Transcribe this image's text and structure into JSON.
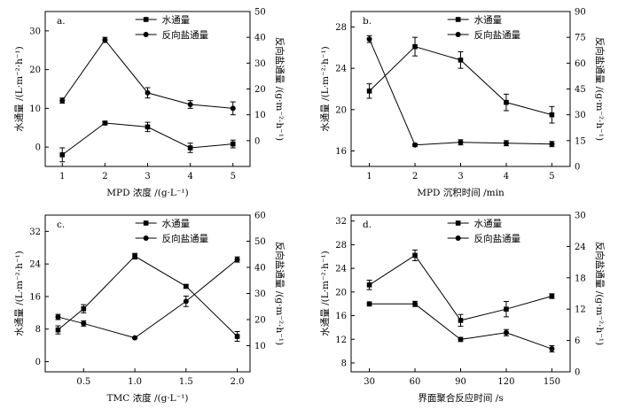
{
  "chart_data": [
    {
      "type": "line",
      "panel_label": "a.",
      "xlabel": "MPD 浓度 /(g·L⁻¹)",
      "ylabel": "水通量 /(L·m⁻²·h⁻¹)",
      "y2label": "反向盐通量 /(g·m⁻²·h⁻¹)",
      "categories": [
        1,
        2,
        3,
        4,
        5
      ],
      "xlim": [
        0.6,
        5.4
      ],
      "ylim": [
        -5,
        35
      ],
      "yticks": [
        0,
        10,
        20,
        30
      ],
      "y2lim": [
        -10,
        50
      ],
      "y2ticks": [
        0,
        10,
        20,
        30,
        40,
        50
      ],
      "legend_position": "top-right",
      "series": [
        {
          "name": "水通量",
          "marker": "square",
          "axis": "left",
          "values": [
            -2,
            6.2,
            5.2,
            -0.2,
            0.8
          ],
          "errors": [
            1.8,
            0.3,
            1.2,
            1.2,
            1.0
          ]
        },
        {
          "name": "反向盐通量",
          "marker": "circle",
          "axis": "right",
          "values": [
            15.5,
            39,
            18.5,
            14,
            12.5
          ],
          "errors": [
            1.0,
            1.0,
            2.0,
            1.5,
            2.5
          ]
        }
      ]
    },
    {
      "type": "line",
      "panel_label": "b.",
      "xlabel": "MPD 沉积时间 /min",
      "ylabel": "水通量 /(L·m⁻²·h⁻¹)",
      "y2label": "反向盐通量 /(g·m⁻²·h⁻¹)",
      "categories": [
        1,
        2,
        3,
        4,
        5
      ],
      "xlim": [
        0.6,
        5.4
      ],
      "ylim": [
        14.5,
        29.5
      ],
      "yticks": [
        16,
        20,
        24,
        28
      ],
      "y2lim": [
        0,
        90
      ],
      "y2ticks": [
        0,
        15,
        30,
        45,
        60,
        75,
        90
      ],
      "legend_position": "top-right",
      "series": [
        {
          "name": "水通量",
          "marker": "square",
          "axis": "left",
          "values": [
            21.8,
            26.1,
            24.8,
            20.7,
            19.5
          ],
          "errors": [
            0.7,
            0.9,
            0.8,
            0.8,
            0.8
          ]
        },
        {
          "name": "反向盐通量",
          "marker": "circle",
          "axis": "right",
          "values": [
            74,
            12.5,
            14,
            13.5,
            13
          ],
          "errors": [
            2,
            0.8,
            1.5,
            1.5,
            1.5
          ]
        }
      ]
    },
    {
      "type": "line",
      "panel_label": "c.",
      "xlabel": "TMC 浓度 /(g·L⁻¹)",
      "ylabel": "水通量 /(L·m⁻²·h⁻¹)",
      "y2label": "反向盐通量 /(g·m⁻²·h⁻¹)",
      "categories": [
        0.25,
        0.5,
        1.0,
        1.5,
        2.0
      ],
      "xticks": [
        "0.5",
        "1.0",
        "1.5",
        "2.0"
      ],
      "xlim": [
        0.125,
        2.125
      ],
      "ylim": [
        -2.5,
        36
      ],
      "yticks": [
        0,
        8,
        16,
        24,
        32
      ],
      "y2lim": [
        0,
        60
      ],
      "y2ticks": [
        10,
        20,
        30,
        40,
        50,
        60
      ],
      "legend_position": "top-right",
      "series": [
        {
          "name": "水通量",
          "marker": "square",
          "axis": "left",
          "values": [
            7.8,
            13,
            25.9,
            18.5,
            6.2
          ],
          "errors": [
            1.0,
            1.0,
            0.7,
            0.4,
            1.2
          ]
        },
        {
          "name": "反向盐通量",
          "marker": "circle",
          "axis": "right",
          "values": [
            21,
            18.5,
            13,
            27,
            43
          ],
          "errors": [
            1.0,
            1.0,
            0.3,
            2.0,
            1.0
          ]
        }
      ]
    },
    {
      "type": "line",
      "panel_label": "d.",
      "xlabel": "界面聚合反应时间 /s",
      "ylabel": "水通量 /(L·m⁻²·h⁻¹)",
      "y2label": "反向盐通量 /(g·m⁻²·h⁻¹)",
      "categories": [
        30,
        60,
        90,
        120,
        150
      ],
      "xlim": [
        18,
        162
      ],
      "ylim": [
        6.5,
        33
      ],
      "yticks": [
        8,
        12,
        16,
        20,
        24,
        28,
        32
      ],
      "y2lim": [
        0,
        30
      ],
      "y2ticks": [
        0,
        6,
        12,
        18,
        24,
        30
      ],
      "legend_position": "top-right",
      "series": [
        {
          "name": "水通量",
          "marker": "square",
          "axis": "left",
          "values": [
            21.2,
            26.2,
            15.2,
            17.1,
            19.3
          ],
          "errors": [
            0.8,
            0.9,
            1.0,
            1.3,
            0.4
          ]
        },
        {
          "name": "反向盐通量",
          "marker": "circle",
          "axis": "right",
          "values": [
            13,
            13,
            6.2,
            7.5,
            4.4
          ],
          "errors": [
            0.4,
            0.5,
            0.4,
            0.6,
            0.6
          ]
        }
      ]
    }
  ]
}
